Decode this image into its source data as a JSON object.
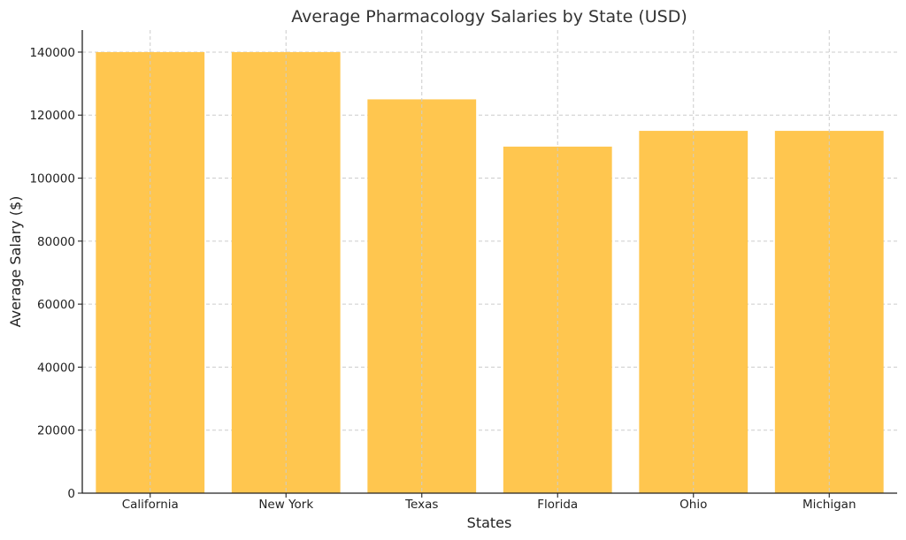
{
  "chart_data": {
    "type": "bar",
    "title": "Average Pharmacology Salaries by State (USD)",
    "xlabel": "States",
    "ylabel": "Average Salary ($)",
    "categories": [
      "California",
      "New York",
      "Texas",
      "Florida",
      "Ohio",
      "Michigan"
    ],
    "values": [
      140000,
      140000,
      125000,
      110000,
      115000,
      115000
    ],
    "ylim": [
      0,
      147000
    ],
    "yticks": [
      0,
      20000,
      40000,
      60000,
      80000,
      100000,
      120000,
      140000
    ],
    "ytick_labels": [
      "0",
      "20000",
      "40000",
      "60000",
      "80000",
      "100000",
      "120000",
      "140000"
    ],
    "grid": true,
    "colors": {
      "bar": "#ffc64f",
      "grid": "#cccccc",
      "axis": "#222222"
    }
  }
}
